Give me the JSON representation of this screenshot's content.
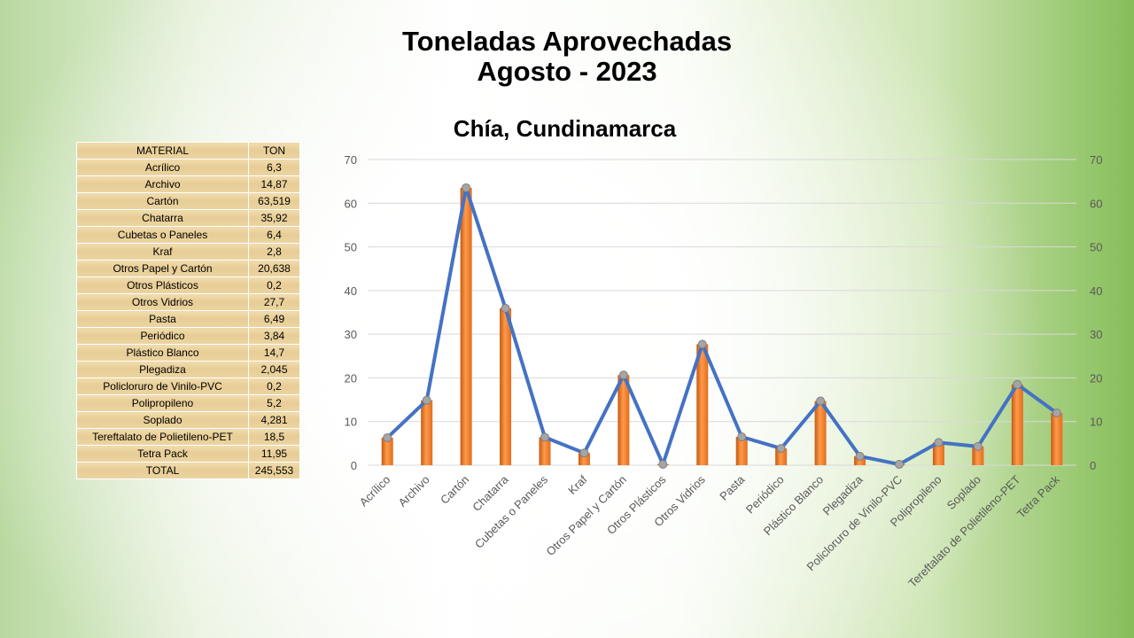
{
  "title_line1": "Toneladas Aprovechadas",
  "title_line2": "Agosto - 2023",
  "subtitle": "Chía, Cundinamarca",
  "table": {
    "header": {
      "material": "MATERIAL",
      "ton": "TON"
    },
    "rows": [
      {
        "material": "Acrílico",
        "ton": "6,3"
      },
      {
        "material": "Archivo",
        "ton": "14,87"
      },
      {
        "material": "Cartón",
        "ton": "63,519"
      },
      {
        "material": "Chatarra",
        "ton": "35,92"
      },
      {
        "material": "Cubetas o Paneles",
        "ton": "6,4"
      },
      {
        "material": "Kraf",
        "ton": "2,8"
      },
      {
        "material": "Otros Papel y Cartón",
        "ton": "20,638"
      },
      {
        "material": "Otros Plásticos",
        "ton": "0,2"
      },
      {
        "material": "Otros Vidrios",
        "ton": "27,7"
      },
      {
        "material": "Pasta",
        "ton": "6,49"
      },
      {
        "material": "Periódico",
        "ton": "3,84"
      },
      {
        "material": "Plástico Blanco",
        "ton": "14,7"
      },
      {
        "material": "Plegadiza",
        "ton": "2,045"
      },
      {
        "material": "Policloruro de Vinilo-PVC",
        "ton": "0,2"
      },
      {
        "material": "Polipropileno",
        "ton": "5,2"
      },
      {
        "material": "Soplado",
        "ton": "4,281"
      },
      {
        "material": "Tereftalato de Polietileno-PET",
        "ton": "18,5"
      },
      {
        "material": "Tetra Pack",
        "ton": "11,95"
      }
    ],
    "total": {
      "material": "TOTAL",
      "ton": "245,553"
    }
  },
  "chart_data": {
    "type": "bar",
    "overlay": "line",
    "categories": [
      "Acrílico",
      "Archivo",
      "Cartón",
      "Chatarra",
      "Cubetas o Paneles",
      "Kraf",
      "Otros Papel y Cartón",
      "Otros Plásticos",
      "Otros Vidrios",
      "Pasta",
      "Periódico",
      "Plástico Blanco",
      "Plegadiza",
      "Policloruro de Vinilo-PVC",
      "Polipropileno",
      "Soplado",
      "Tereftalato de Polietileno-PET",
      "Tetra Pack"
    ],
    "values": [
      6.3,
      14.87,
      63.519,
      35.92,
      6.4,
      2.8,
      20.638,
      0.2,
      27.7,
      6.49,
      3.84,
      14.7,
      2.045,
      0.2,
      5.2,
      4.281,
      18.5,
      11.95
    ],
    "ylim": [
      0,
      70
    ],
    "yticks": [
      0,
      10,
      20,
      30,
      40,
      50,
      60,
      70
    ],
    "secondary_axis": true,
    "grid": true,
    "colors": {
      "bar": "#ed7d31",
      "bar_dark": "#c55a11",
      "line": "#4472c4",
      "marker": "#a5a5a5",
      "grid": "#d9d9d9"
    }
  }
}
